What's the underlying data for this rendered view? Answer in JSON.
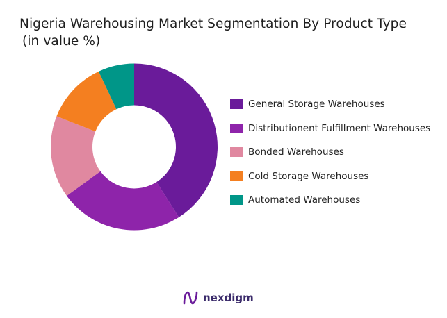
{
  "chart_data": {
    "type": "pie",
    "variant": "donut",
    "title": "Nigeria Warehousing Market Segmentation By Product Type",
    "subtitle": "(in value %)",
    "categories": [
      "General Storage Warehouses",
      "Distributionent Fulfillment Warehouses",
      "Bonded Warehouses",
      "Cold Storage Warehouses",
      "Automated Warehouses"
    ],
    "values": [
      41,
      24,
      16,
      12,
      7
    ],
    "colors": [
      "#6a1b9a",
      "#8e24aa",
      "#e088a0",
      "#f47f20",
      "#009688"
    ],
    "legend_position": "right"
  },
  "brand": {
    "name": "nexdigm",
    "color": "#6a1b9a"
  }
}
